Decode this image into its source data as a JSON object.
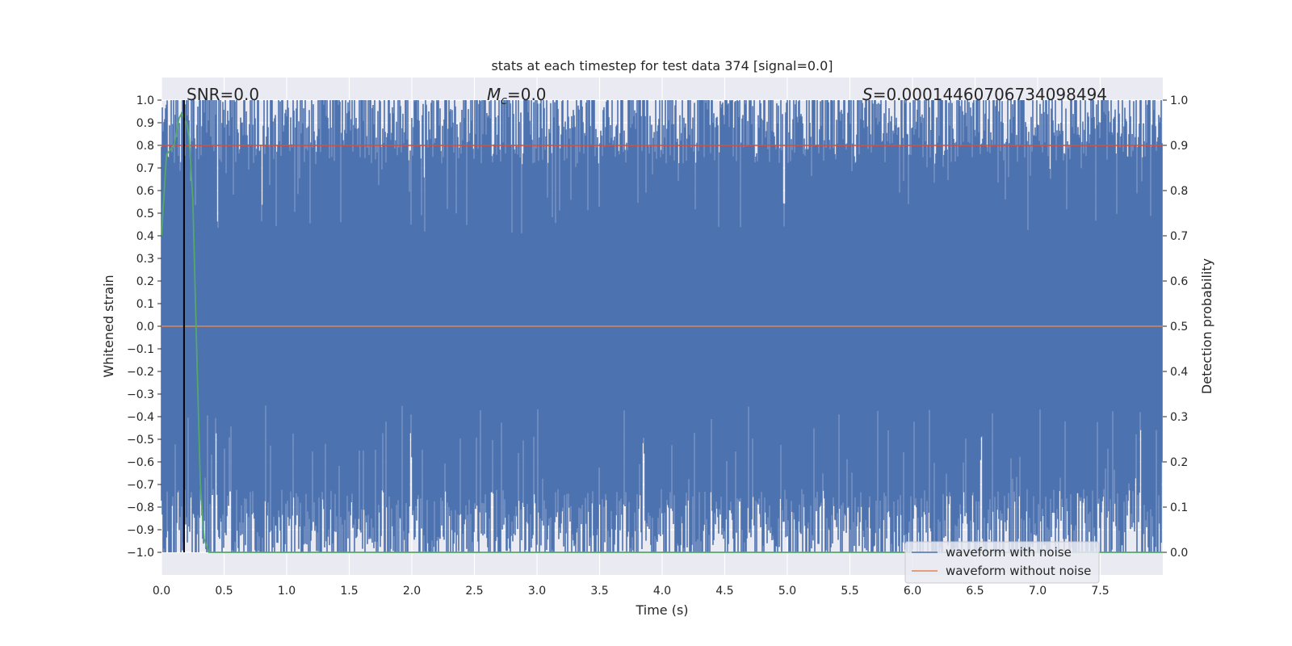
{
  "chart_data": {
    "type": "line",
    "title": "stats at each timestep for test data 374 [signal=0.0]",
    "xlabel": "Time (s)",
    "ylabel": "Whitened strain",
    "y2label": "Detection probability",
    "xlim": [
      0.0,
      8.0
    ],
    "ylim": [
      -1.1,
      1.1
    ],
    "y2lim": [
      -0.05,
      1.05
    ],
    "x_ticks": [
      0.0,
      0.5,
      1.0,
      1.5,
      2.0,
      2.5,
      3.0,
      3.5,
      4.0,
      4.5,
      5.0,
      5.5,
      6.0,
      6.5,
      7.0,
      7.5
    ],
    "x_tick_labels": [
      "0.0",
      "0.5",
      "1.0",
      "1.5",
      "2.0",
      "2.5",
      "3.0",
      "3.5",
      "4.0",
      "4.5",
      "5.0",
      "5.5",
      "6.0",
      "6.5",
      "7.0",
      "7.5"
    ],
    "y_ticks": [
      1.0,
      0.9,
      0.8,
      0.7,
      0.6,
      0.5,
      0.4,
      0.3,
      0.2,
      0.1,
      0.0,
      -0.1,
      -0.2,
      -0.3,
      -0.4,
      -0.5,
      -0.6,
      -0.7,
      -0.8,
      -0.9,
      -1.0
    ],
    "y_tick_labels": [
      "1.0",
      "0.9",
      "0.8",
      "0.7",
      "0.6",
      "0.5",
      "0.4",
      "0.3",
      "0.2",
      "0.1",
      "0.0",
      "−0.1",
      "−0.2",
      "−0.3",
      "−0.4",
      "−0.5",
      "−0.6",
      "−0.7",
      "−0.8",
      "−0.9",
      "−1.0"
    ],
    "y2_ticks": [
      1.0,
      0.9,
      0.8,
      0.7,
      0.6,
      0.5,
      0.4,
      0.3,
      0.2,
      0.1,
      0.0
    ],
    "y2_tick_labels": [
      "1.0",
      "0.9",
      "0.8",
      "0.7",
      "0.6",
      "0.5",
      "0.4",
      "0.3",
      "0.2",
      "0.1",
      "0.0"
    ],
    "grid": true,
    "legend_position": "lower-right",
    "annotations": {
      "snr": "SNR=0.0",
      "mc_symbol": "M",
      "mc_sub": "c",
      "mc_value": "=0.0",
      "s_symbol": "S",
      "s_value": "=0.00014460706734098494"
    },
    "series": [
      {
        "name": "waveform with noise",
        "color": "#4c72b0",
        "axis": "left",
        "style": "dense noise, clipped to [-1, 1]",
        "x_range": [
          0.0,
          8.0
        ]
      },
      {
        "name": "waveform without noise",
        "color": "#dd8452",
        "axis": "left",
        "x": [
          0.0,
          8.0
        ],
        "y": [
          0.0,
          0.0
        ]
      },
      {
        "color": "#55a868",
        "axis": "right",
        "x": [
          0.0,
          0.04,
          0.1,
          0.12,
          0.14,
          0.16,
          0.18,
          0.2,
          0.22,
          0.25,
          0.28,
          0.31,
          0.34,
          0.38,
          1.0,
          2.0,
          3.0,
          4.0,
          5.0,
          6.0,
          7.0,
          8.0
        ],
        "y": [
          0.7,
          0.88,
          0.9,
          0.93,
          0.96,
          0.97,
          0.96,
          0.95,
          0.92,
          0.78,
          0.46,
          0.15,
          0.03,
          0.0,
          0.0,
          0.0,
          0.0,
          0.0,
          0.0,
          0.0,
          0.0,
          0.0
        ]
      },
      {
        "color": "#e24a33",
        "axis": "right",
        "style": "threshold line",
        "x": [
          0.0,
          8.0
        ],
        "y": [
          0.9,
          0.9
        ]
      },
      {
        "color": "#000000",
        "axis": "left",
        "style": "vertical marker",
        "x": [
          0.18,
          0.18
        ],
        "y": [
          -1.0,
          1.0
        ]
      }
    ]
  }
}
